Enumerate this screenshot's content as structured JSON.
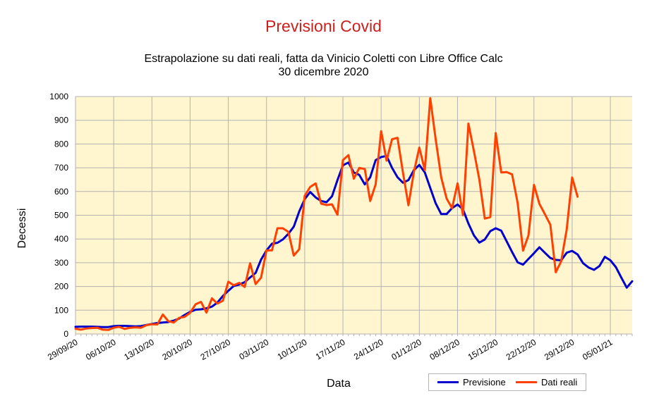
{
  "title": "Previsioni Covid",
  "subtitle_line1": "Estrapolazione su dati reali, fatta da Vinicio Coletti con Libre Office Calc",
  "subtitle_line2": "30 dicembre 2020",
  "colors": {
    "title": "#c9211e",
    "plot_background": "#fff5ce",
    "grid": "#b3b3b3",
    "previsione": "#0000cc",
    "dati_reali": "#ff4000"
  },
  "chart_data": {
    "type": "line",
    "xlabel": "Data",
    "ylabel": "Decessi",
    "ylim": [
      0,
      1000
    ],
    "yticks": [
      0,
      100,
      200,
      300,
      400,
      500,
      600,
      700,
      800,
      900,
      1000
    ],
    "x_start": "29/09/20",
    "x_end": "11/01/21",
    "xtick_labels": [
      "29/09/20",
      "06/10/20",
      "13/10/20",
      "20/10/20",
      "27/10/20",
      "03/11/20",
      "10/11/20",
      "17/11/20",
      "24/11/20",
      "01/12/20",
      "08/12/20",
      "15/12/20",
      "22/12/20",
      "29/12/20",
      "05/01/21"
    ],
    "grid": true,
    "legend_position": "bottom-right",
    "series": [
      {
        "name": "Previsione",
        "color": "#0000cc",
        "values": [
          30,
          31,
          31,
          31,
          30,
          29,
          29,
          33,
          34,
          34,
          33,
          32,
          33,
          38,
          42,
          46,
          48,
          50,
          56,
          65,
          80,
          93,
          102,
          104,
          108,
          115,
          132,
          160,
          182,
          202,
          208,
          218,
          238,
          257,
          313,
          352,
          380,
          384,
          398,
          422,
          452,
          516,
          568,
          598,
          575,
          560,
          555,
          580,
          648,
          710,
          722,
          680,
          670,
          630,
          660,
          732,
          745,
          750,
          700,
          660,
          637,
          648,
          690,
          712,
          680,
          615,
          550,
          505,
          505,
          530,
          545,
          525,
          465,
          415,
          385,
          398,
          433,
          445,
          435,
          390,
          345,
          302,
          292,
          316,
          340,
          365,
          342,
          320,
          312,
          310,
          342,
          350,
          335,
          298,
          280,
          270,
          286,
          325,
          310,
          282,
          238,
          195,
          222
        ]
      },
      {
        "name": "Dati reali",
        "color": "#ff4000",
        "values": [
          22,
          18,
          23,
          25,
          26,
          18,
          17,
          26,
          30,
          21,
          26,
          28,
          26,
          37,
          41,
          40,
          82,
          54,
          48,
          68,
          72,
          89,
          125,
          135,
          90,
          150,
          128,
          140,
          220,
          205,
          215,
          198,
          298,
          210,
          237,
          352,
          352,
          445,
          445,
          430,
          330,
          357,
          582,
          619,
          634,
          549,
          543,
          546,
          502,
          732,
          753,
          654,
          699,
          695,
          560,
          630,
          854,
          730,
          820,
          826,
          680,
          542,
          682,
          785,
          690,
          993,
          820,
          660,
          570,
          530,
          634,
          500,
          886,
          770,
          650,
          486,
          492,
          846,
          680,
          682,
          672,
          553,
          351,
          415,
          628,
          548,
          505,
          460,
          260,
          306,
          440,
          659,
          578
        ]
      }
    ]
  }
}
